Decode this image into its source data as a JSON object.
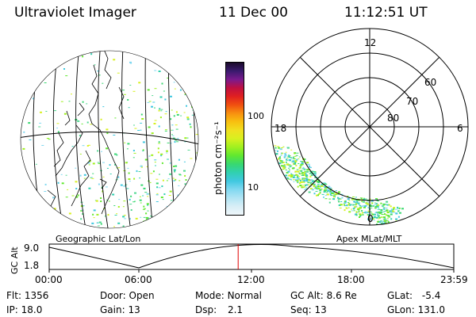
{
  "header": {
    "instrument": "Ultraviolet Imager",
    "date": "11 Dec 00",
    "time": "11:12:51 UT"
  },
  "colorbar": {
    "unit_label": "photon cm⁻²s⁻¹",
    "tick_labels": [
      "100",
      "10"
    ],
    "colors": [
      "#1a0a2a",
      "#3a1a6e",
      "#7a1a8e",
      "#c01040",
      "#e02020",
      "#f05010",
      "#f89010",
      "#f8c010",
      "#f0e020",
      "#d8f020",
      "#a0f020",
      "#60e830",
      "#38d870",
      "#30d0b0",
      "#40c8e0",
      "#80d8f0",
      "#b0e4f4",
      "#d8eef6",
      "#eef6fa"
    ]
  },
  "geo_map": {
    "label": "Geographic Lat/Lon"
  },
  "polar_plot": {
    "label": "Apex MLat/MLT",
    "mlt_labels": [
      "12",
      "18",
      "6",
      "0"
    ],
    "mlat_labels": [
      "60",
      "70",
      "80"
    ]
  },
  "altitude_plot": {
    "ylabel": "GC Alt",
    "yticks": [
      "9.0",
      "1.8"
    ],
    "xticks": [
      "00:00",
      "06:00",
      "12:00",
      "18:00",
      "23:59"
    ],
    "marker_color": "#e00000",
    "marker_hour": 11.21
  },
  "status": {
    "flt": {
      "label": "Flt:",
      "value": "1356"
    },
    "ip": {
      "label": "IP:",
      "value": "18.0"
    },
    "door": {
      "label": "Door:",
      "value": "Open"
    },
    "gain": {
      "label": "Gain:",
      "value": "13"
    },
    "mode": {
      "label": "Mode:",
      "value": "Normal"
    },
    "dsp": {
      "label": "Dsp:",
      "value": "2.1"
    },
    "gcalt": {
      "label": "GC Alt:",
      "value": "8.6 Re"
    },
    "seq": {
      "label": "Seq:",
      "value": "13"
    },
    "glat": {
      "label": "GLat:",
      "value": "-5.4"
    },
    "glon": {
      "label": "GLon:",
      "value": "131.0"
    }
  }
}
